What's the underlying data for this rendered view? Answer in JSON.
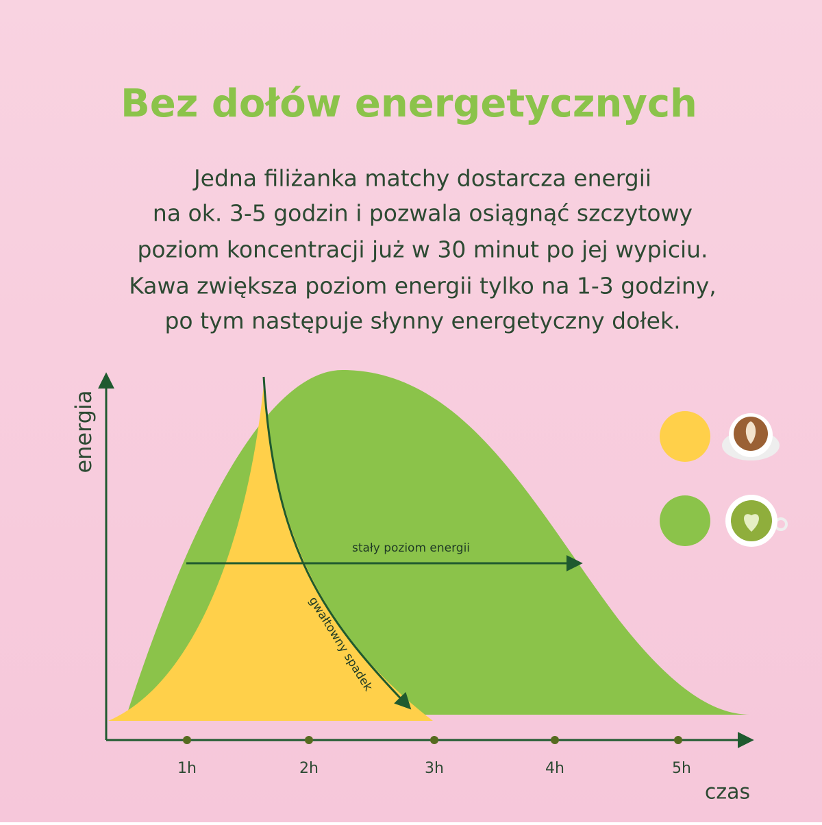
{
  "title": "Bez dołów energetycznych",
  "description": [
    "Jedna filiżanka matchy dostarcza energii",
    "na ok. 3-5 godzin i pozwala osiągnąć szczytowy",
    "poziom koncentracji już w 30 minut po jej wypiciu.",
    "Kawa zwiększa poziom energii tylko na 1-3 godziny,",
    "po tym następuje słynny energetyczny dołek."
  ],
  "diagram": {
    "y_axis_label": "energia",
    "x_axis_label": "czas",
    "x_ticks": [
      "1h",
      "2h",
      "3h",
      "4h",
      "5h"
    ],
    "annotations": {
      "steady": "stały poziom energii",
      "drop": "gwałtowny spadek"
    }
  }
}
